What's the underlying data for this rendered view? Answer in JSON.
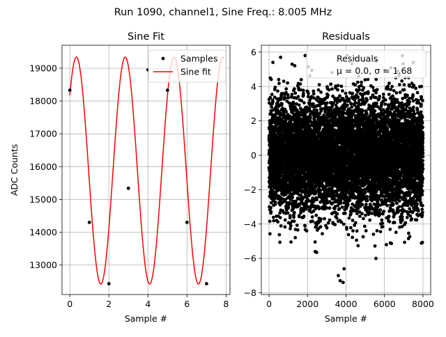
{
  "figure": {
    "suptitle": "Run 1090, channel1, Sine Freq.: 8.005 MHz"
  },
  "chart_data": [
    {
      "type": "scatter",
      "title": "Sine Fit",
      "xlabel": "Sample #",
      "ylabel": "ADC Counts",
      "xlim": [
        -0.4,
        8.2
      ],
      "ylim": [
        12100,
        19700
      ],
      "xticks": [
        0,
        2,
        4,
        6,
        8
      ],
      "yticks": [
        13000,
        14000,
        15000,
        16000,
        17000,
        18000,
        19000
      ],
      "grid": true,
      "legend_position": "top-right",
      "series": [
        {
          "name": "Samples",
          "kind": "scatter",
          "color": "#000000",
          "x": [
            0,
            1,
            2,
            3,
            4,
            5,
            6,
            7
          ],
          "y": [
            18330,
            14300,
            12430,
            15340,
            18950,
            18330,
            14300,
            12430
          ]
        },
        {
          "name": "Sine fit",
          "kind": "line",
          "color": "#ff0000",
          "curve": {
            "model": "offset + amplitude * sin(2*pi*frequency*x + phase)",
            "offset": 15880,
            "amplitude": 3460,
            "frequency": 0.4,
            "phase": 0.725,
            "x_range": [
              0,
              7.9
            ]
          }
        }
      ]
    },
    {
      "type": "scatter",
      "title": "Residuals",
      "xlabel": "Sample #",
      "ylabel": "",
      "xlim": [
        -400,
        8400
      ],
      "ylim": [
        -8.1,
        6.4
      ],
      "xticks": [
        0,
        2000,
        4000,
        6000,
        8000
      ],
      "yticks": [
        -8,
        -6,
        -4,
        -2,
        0,
        2,
        4,
        6
      ],
      "grid": true,
      "legend_position": "top-right",
      "series": [
        {
          "name": "Residuals",
          "kind": "scatter",
          "color": "#000000",
          "distribution": {
            "n": 8000,
            "x_range": [
              0,
              8000
            ],
            "mean": 0.0,
            "sigma": 1.68
          },
          "outliers": [
            {
              "x": 3600,
              "y": -7.0
            },
            {
              "x": 3700,
              "y": -7.3
            },
            {
              "x": 3850,
              "y": -7.4
            },
            {
              "x": 3900,
              "y": -6.6
            },
            {
              "x": 600,
              "y": 5.7
            },
            {
              "x": 1200,
              "y": 5.3
            },
            {
              "x": 5600,
              "y": 5.5
            },
            {
              "x": 7500,
              "y": 5.4
            },
            {
              "x": 200,
              "y": 5.4
            },
            {
              "x": 2400,
              "y": -5.6
            },
            {
              "x": 6100,
              "y": -5.2
            }
          ]
        }
      ],
      "legend_label": "Residuals",
      "legend_stats": "μ = 0.0, σ = 1.68"
    }
  ]
}
